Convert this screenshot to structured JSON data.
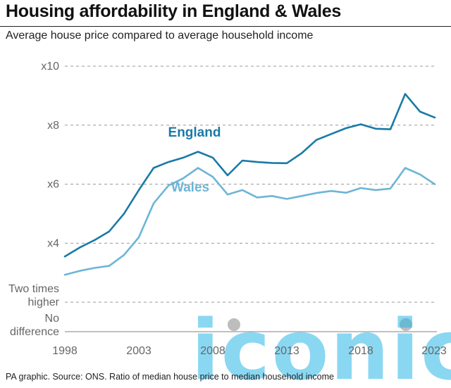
{
  "header": {
    "title": "Housing affordability in England & Wales",
    "subtitle": "Average house price compared to average household income"
  },
  "footer": {
    "source": "PA graphic. Source: ONS. Ratio of median house price to median household income"
  },
  "watermark": {
    "text": "iconic",
    "color": "#29b6e8"
  },
  "colors": {
    "england": "#1a7aa6",
    "wales": "#6db5d6",
    "grid": "#9a9a9a",
    "axis_text": "#666666"
  },
  "chart_data": {
    "type": "line",
    "title": "Housing affordability in England & Wales",
    "subtitle": "Average house price compared to average household income",
    "xlabel": "",
    "ylabel": "",
    "xlim": [
      1998,
      2023
    ],
    "ylim": [
      1,
      10
    ],
    "x_ticks": [
      1998,
      2003,
      2008,
      2013,
      2018,
      2023
    ],
    "y_ticks": [
      {
        "value": 10,
        "label": "x10"
      },
      {
        "value": 8,
        "label": "x8"
      },
      {
        "value": 6,
        "label": "x6"
      },
      {
        "value": 4,
        "label": "x4"
      },
      {
        "value": 2,
        "label": "Two times higher"
      },
      {
        "value": 1,
        "label": "No difference"
      }
    ],
    "grid": true,
    "legend": "inline labels",
    "x": [
      1998,
      1999,
      2000,
      2001,
      2002,
      2003,
      2004,
      2005,
      2006,
      2007,
      2008,
      2009,
      2010,
      2011,
      2012,
      2013,
      2014,
      2015,
      2016,
      2017,
      2018,
      2019,
      2020,
      2021,
      2022,
      2023
    ],
    "series": [
      {
        "name": "England",
        "color": "#1a7aa6",
        "values": [
          3.55,
          3.85,
          4.1,
          4.4,
          5.0,
          5.8,
          6.55,
          6.75,
          6.9,
          7.1,
          6.9,
          6.3,
          6.8,
          6.75,
          6.72,
          6.71,
          7.05,
          7.5,
          7.7,
          7.9,
          8.03,
          7.88,
          7.86,
          9.06,
          8.46,
          8.26
        ]
      },
      {
        "name": "Wales",
        "color": "#6db5d6",
        "values": [
          2.93,
          3.06,
          3.16,
          3.23,
          3.6,
          4.2,
          5.35,
          5.95,
          6.2,
          6.55,
          6.25,
          5.65,
          5.8,
          5.55,
          5.6,
          5.5,
          5.6,
          5.7,
          5.77,
          5.71,
          5.87,
          5.8,
          5.85,
          6.55,
          6.33,
          6.0
        ]
      }
    ]
  }
}
